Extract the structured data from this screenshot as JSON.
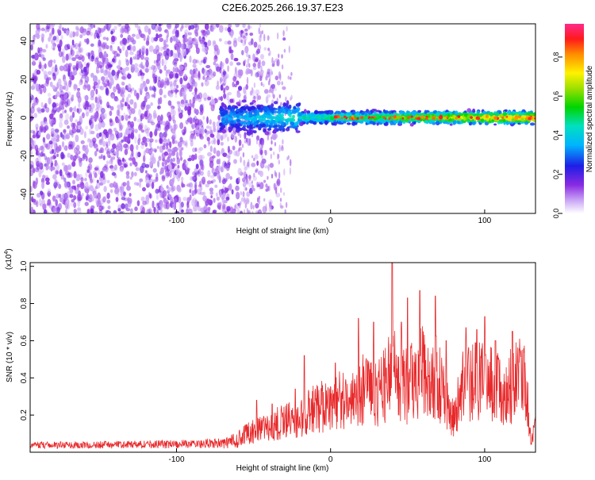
{
  "title": "C2E6.2025.266.19.37.E23",
  "colors": {
    "axis": "#000000",
    "snr_line": "#e8282a"
  },
  "chart_data": [
    {
      "type": "heatmap",
      "name": "spectrogram",
      "xlabel": "Height of straight line (km)",
      "ylabel": "Frequency (Hz)",
      "xlim": [
        -195,
        133
      ],
      "ylim": [
        -50,
        49
      ],
      "xticks": [
        -100,
        0,
        100
      ],
      "xtick_labels": [
        "-100",
        "0",
        "100"
      ],
      "yticks": [
        -40,
        -20,
        0,
        20,
        40
      ],
      "ytick_labels": [
        "-40",
        "-20",
        "0",
        "20",
        "40"
      ],
      "colorbar": {
        "label": "Normalized spectral amplitude",
        "range": [
          0.0,
          0.97
        ],
        "ticks": [
          0.0,
          0.2,
          0.4,
          0.6,
          0.8
        ],
        "tick_labels": [
          "0.0",
          "0.2",
          "0.4",
          "0.6",
          "0.8"
        ]
      },
      "features": {
        "noise_region_x": [
          -195,
          -30
        ],
        "signal_start_x": -72,
        "signal_center_freq": 0,
        "signal_halfwidth_hz": 4,
        "peak_amplitude_x": [
          0,
          133
        ]
      }
    },
    {
      "type": "line",
      "name": "snr",
      "xlabel": "Height of straight line (km)",
      "ylabel": "SNR (10 * v/v)",
      "multiplier_label": "(x10",
      "multiplier_exponent": "4",
      "xlim": [
        -195,
        133
      ],
      "ylim": [
        0,
        1.02
      ],
      "xticks": [
        -100,
        0,
        100
      ],
      "xtick_labels": [
        "-100",
        "0",
        "100"
      ],
      "yticks": [
        0.2,
        0.4,
        0.6,
        0.8,
        1.0
      ],
      "ytick_labels": [
        "0.2",
        "0.4",
        "0.6",
        "0.8",
        "1.0"
      ],
      "envelope": [
        [
          -195,
          0.04
        ],
        [
          -100,
          0.05
        ],
        [
          -70,
          0.06
        ],
        [
          -50,
          0.13
        ],
        [
          -35,
          0.18
        ],
        [
          -20,
          0.22
        ],
        [
          -10,
          0.28
        ],
        [
          0,
          0.3
        ],
        [
          10,
          0.34
        ],
        [
          20,
          0.4
        ],
        [
          30,
          0.36
        ],
        [
          40,
          0.5
        ],
        [
          50,
          0.42
        ],
        [
          60,
          0.55
        ],
        [
          70,
          0.45
        ],
        [
          80,
          0.2
        ],
        [
          85,
          0.4
        ],
        [
          95,
          0.45
        ],
        [
          105,
          0.42
        ],
        [
          115,
          0.38
        ],
        [
          122,
          0.5
        ],
        [
          127,
          0.42
        ],
        [
          130,
          0.1
        ],
        [
          133,
          0.15
        ]
      ],
      "peaks": [
        [
          -48,
          0.28
        ],
        [
          -38,
          0.26
        ],
        [
          -23,
          0.34
        ],
        [
          -17,
          0.52
        ],
        [
          3,
          0.48
        ],
        [
          18,
          0.72
        ],
        [
          28,
          0.7
        ],
        [
          40,
          1.02
        ],
        [
          46,
          0.7
        ],
        [
          50,
          0.83
        ],
        [
          58,
          0.87
        ],
        [
          68,
          0.84
        ],
        [
          75,
          0.6
        ],
        [
          88,
          0.67
        ],
        [
          95,
          0.66
        ],
        [
          100,
          0.73
        ],
        [
          107,
          0.6
        ],
        [
          118,
          0.65
        ],
        [
          123,
          0.55
        ]
      ]
    }
  ]
}
